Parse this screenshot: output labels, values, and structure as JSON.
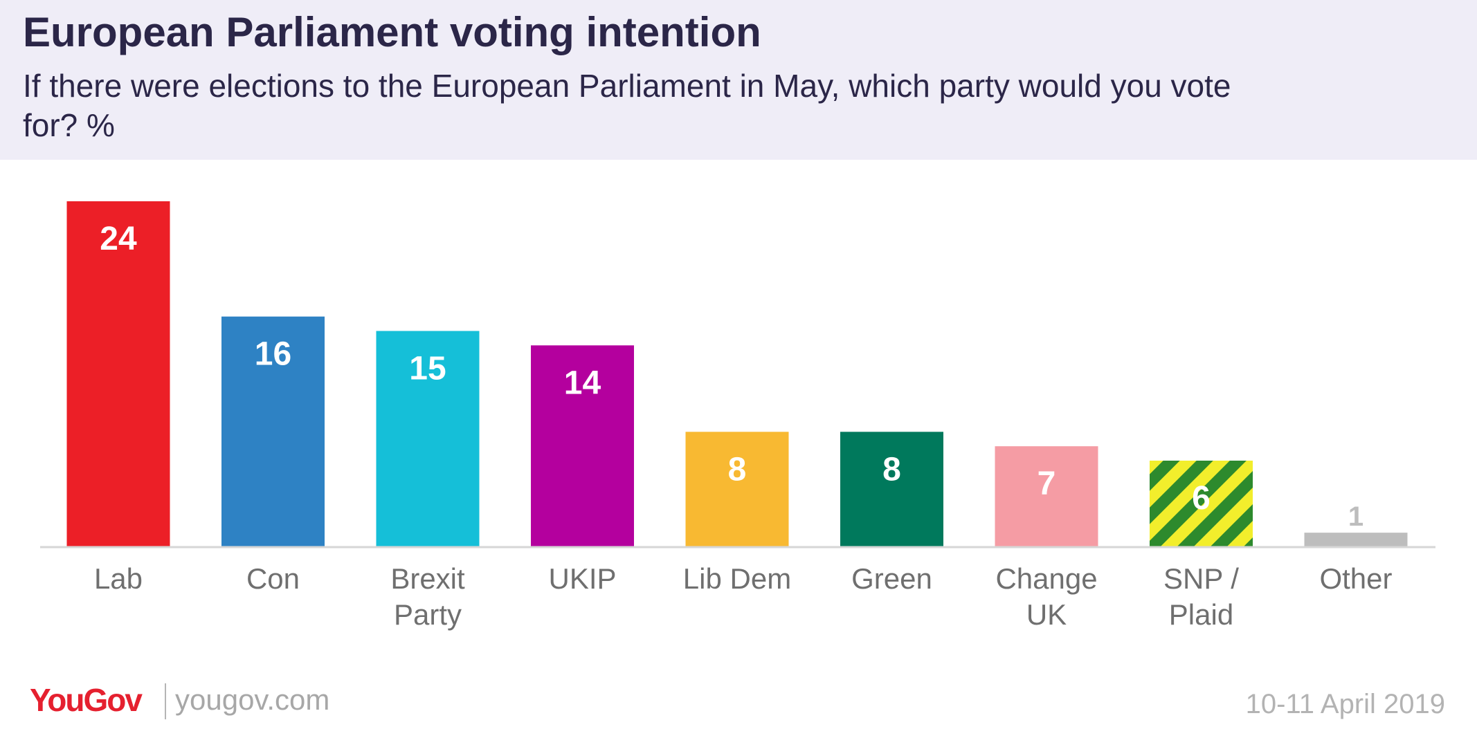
{
  "header": {
    "title": "European Parliament voting intention",
    "subtitle": "If there were elections to the European Parliament in May, which party would you vote for? %"
  },
  "chart_data": {
    "type": "bar",
    "title": "European Parliament voting intention",
    "subtitle": "If there were elections to the European Parliament in May, which party would you vote for? %",
    "xlabel": "",
    "ylabel": "%",
    "ylim": [
      0,
      24
    ],
    "grid": false,
    "legend": "none",
    "categories": [
      "Lab",
      "Con",
      "Brexit Party",
      "UKIP",
      "Lib Dem",
      "Green",
      "Change UK",
      "SNP / Plaid",
      "Other"
    ],
    "category_lines": [
      [
        "Lab"
      ],
      [
        "Con"
      ],
      [
        "Brexit",
        "Party"
      ],
      [
        "UKIP"
      ],
      [
        "Lib Dem"
      ],
      [
        "Green"
      ],
      [
        "Change",
        "UK"
      ],
      [
        "SNP /",
        "Plaid"
      ],
      [
        "Other"
      ]
    ],
    "values": [
      24,
      16,
      15,
      14,
      8,
      8,
      7,
      6,
      1
    ],
    "value_labels": [
      "24",
      "16",
      "15",
      "14",
      "8",
      "8",
      "7",
      "6",
      "1"
    ],
    "colors": [
      "#ec1f27",
      "#2e82c4",
      "#15bfd8",
      "#b4009e",
      "#f8b932",
      "#00795c",
      "#f59ca4",
      "#2d8a2d",
      "#bdbdbd"
    ],
    "stripe_color": "#f2ee2c",
    "striped_index": 7
  },
  "footer": {
    "logo_you": "You",
    "logo_gov": "Gov",
    "url": "yougov.com",
    "date": "10-11 April 2019"
  }
}
